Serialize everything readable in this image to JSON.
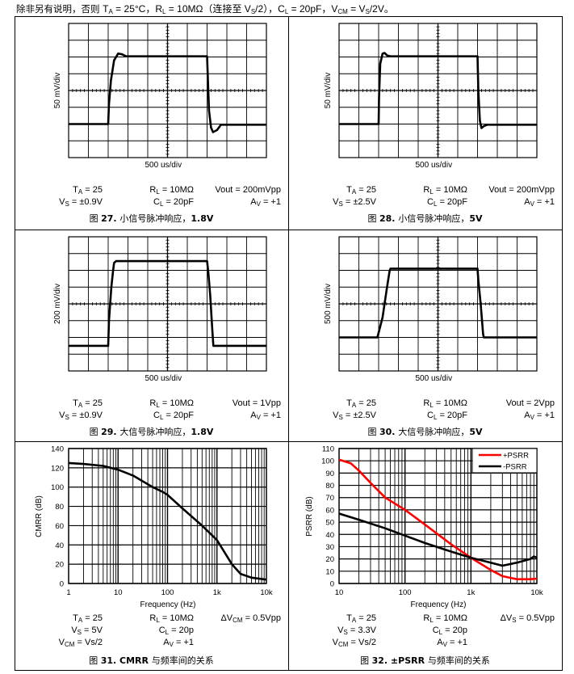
{
  "header": {
    "note_prefix": "除非另有说明，否则 ",
    "conditions": [
      {
        "main": "T",
        "sub": "A",
        "rest": " = 25°C，"
      },
      {
        "main": "R",
        "sub": "L",
        "rest": " = 10MΩ（连接至 "
      },
      {
        "main": "V",
        "sub": "S",
        "rest": "/2），"
      },
      {
        "main": "C",
        "sub": "L",
        "rest": " = 20pF，"
      },
      {
        "main": "V",
        "sub": "CM",
        "rest": " = "
      },
      {
        "main": "V",
        "sub": "S",
        "rest": "/2V。"
      }
    ]
  },
  "colors": {
    "trace": "#000000",
    "psrr_plus": "#ff0000",
    "psrr_minus": "#000000",
    "grid": "#000000"
  },
  "chart_data": [
    {
      "id": "fig27",
      "type": "line",
      "xlabel": "500 us/div",
      "ylabel": "50 mV/div",
      "x_per_div_us": 500,
      "y_per_div_mV": 50,
      "xlim": [
        -2500,
        2500
      ],
      "ylim": [
        -200,
        200
      ],
      "grid": true,
      "series": [
        {
          "x": [
            -2500,
            -1500,
            -1480,
            -1430,
            -1350,
            -1250,
            -1150,
            -1050,
            1000,
            1050,
            1100,
            1150,
            1250,
            1350,
            2500
          ],
          "y": [
            -100,
            -100,
            -40,
            30,
            90,
            110,
            108,
            102,
            102,
            -60,
            -110,
            -124,
            -118,
            -102,
            -102
          ]
        }
      ],
      "params": [
        [
          {
            "main": "T",
            "sub": "A",
            "rest": " = 25"
          },
          {
            "main": "R",
            "sub": "L",
            "rest": " = 10MΩ"
          },
          {
            "main": "Vout = 200mVpp",
            "sub": "",
            "rest": ""
          }
        ],
        [
          {
            "main": "V",
            "sub": "S",
            "rest": " = ±0.9V"
          },
          {
            "main": "C",
            "sub": "L",
            "rest": " = 20pF"
          },
          {
            "main": "A",
            "sub": "V",
            "rest": " = +1"
          }
        ]
      ],
      "caption_prefix": "图 ",
      "caption_num": "27. ",
      "caption_text": "小信号脉冲响应，",
      "caption_suffix": "1.8V"
    },
    {
      "id": "fig28",
      "type": "line",
      "xlabel": "500 us/div",
      "ylabel": "50 mV/div",
      "x_per_div_us": 500,
      "y_per_div_mV": 50,
      "xlim": [
        -2500,
        2500
      ],
      "ylim": [
        -200,
        200
      ],
      "grid": true,
      "series": [
        {
          "x": [
            -2500,
            -1500,
            -1490,
            -1460,
            -1400,
            -1350,
            -1280,
            -1200,
            1000,
            1020,
            1060,
            1100,
            1160,
            1250,
            2500
          ],
          "y": [
            -100,
            -100,
            -20,
            80,
            110,
            112,
            104,
            102,
            102,
            0,
            -90,
            -112,
            -106,
            -102,
            -102
          ]
        }
      ],
      "params": [
        [
          {
            "main": "T",
            "sub": "A",
            "rest": " = 25"
          },
          {
            "main": "R",
            "sub": "L",
            "rest": " = 10MΩ"
          },
          {
            "main": "Vout = 200mVpp",
            "sub": "",
            "rest": ""
          }
        ],
        [
          {
            "main": "V",
            "sub": "S",
            "rest": " = ±2.5V"
          },
          {
            "main": "C",
            "sub": "L",
            "rest": " = 20pF"
          },
          {
            "main": "A",
            "sub": "V",
            "rest": " = +1"
          }
        ]
      ],
      "caption_prefix": "图 ",
      "caption_num": "28. ",
      "caption_text": "小信号脉冲响应，",
      "caption_suffix": "5V"
    },
    {
      "id": "fig29",
      "type": "line",
      "xlabel": "500 us/div",
      "ylabel": "200 mV/div",
      "x_per_div_us": 500,
      "y_per_div_mV": 200,
      "xlim": [
        -2500,
        2500
      ],
      "ylim": [
        -800,
        800
      ],
      "grid": true,
      "series": [
        {
          "x": [
            -2500,
            -1500,
            -1480,
            -1420,
            -1380,
            -1350,
            -1300,
            1000,
            1030,
            1080,
            1130,
            1160,
            2500
          ],
          "y": [
            -500,
            -500,
            -200,
            200,
            380,
            490,
            510,
            510,
            380,
            100,
            -300,
            -500,
            -500
          ]
        }
      ],
      "params": [
        [
          {
            "main": "T",
            "sub": "A",
            "rest": " = 25"
          },
          {
            "main": "R",
            "sub": "L",
            "rest": " = 10MΩ"
          },
          {
            "main": "Vout = 1Vpp",
            "sub": "",
            "rest": ""
          }
        ],
        [
          {
            "main": "V",
            "sub": "S",
            "rest": " = ±0.9V"
          },
          {
            "main": "C",
            "sub": "L",
            "rest": " = 20pF"
          },
          {
            "main": "A",
            "sub": "V",
            "rest": " = +1"
          }
        ]
      ],
      "caption_prefix": "图 ",
      "caption_num": "29. ",
      "caption_text": "大信号脉冲响应，",
      "caption_suffix": "1.8V"
    },
    {
      "id": "fig30",
      "type": "line",
      "xlabel": "500 us/div",
      "ylabel": "500 mV/div",
      "x_per_div_us": 500,
      "y_per_div_mV": 500,
      "xlim": [
        -2500,
        2500
      ],
      "ylim": [
        -2000,
        2000
      ],
      "grid": true,
      "series": [
        {
          "x": [
            -2500,
            -1530,
            -1400,
            -1300,
            -1220,
            -1200,
            1000,
            1020,
            1080,
            1140,
            1160,
            2500
          ],
          "y": [
            -1000,
            -1000,
            -400,
            400,
            1000,
            1050,
            1050,
            700,
            0,
            -900,
            -1000,
            -1000
          ]
        }
      ],
      "params": [
        [
          {
            "main": "T",
            "sub": "A",
            "rest": " = 25"
          },
          {
            "main": "R",
            "sub": "L",
            "rest": " = 10MΩ"
          },
          {
            "main": "Vout = 2Vpp",
            "sub": "",
            "rest": ""
          }
        ],
        [
          {
            "main": "V",
            "sub": "S",
            "rest": " = ±2.5V"
          },
          {
            "main": "C",
            "sub": "L",
            "rest": " = 20pF"
          },
          {
            "main": "A",
            "sub": "V",
            "rest": " = +1"
          }
        ]
      ],
      "caption_prefix": "图 ",
      "caption_num": "30. ",
      "caption_text": "大信号脉冲响应，",
      "caption_suffix": "5V"
    },
    {
      "id": "fig31",
      "type": "line",
      "xlabel": "Frequency (Hz)",
      "ylabel": "CMRR (dB)",
      "xscale": "log",
      "xlim": [
        1,
        10000
      ],
      "ylim": [
        0,
        140
      ],
      "grid": true,
      "xticks": [
        1,
        10,
        100,
        1000,
        10000
      ],
      "xtick_labels": [
        "1",
        "10",
        "100",
        "1k",
        "10k"
      ],
      "yticks": [
        0,
        20,
        40,
        60,
        80,
        100,
        120,
        140
      ],
      "series": [
        {
          "x": [
            1,
            2,
            5,
            10,
            20,
            50,
            80,
            100,
            200,
            500,
            1000,
            2000,
            3000,
            5000,
            10000
          ],
          "y": [
            125,
            124,
            122,
            118,
            112,
            100,
            95,
            92,
            78,
            60,
            45,
            20,
            10,
            6,
            4
          ]
        }
      ],
      "params": [
        [
          {
            "main": "T",
            "sub": "A",
            "rest": " = 25"
          },
          {
            "main": "R",
            "sub": "L",
            "rest": " = 10MΩ"
          },
          {
            "main": "ΔV",
            "sub": "CM",
            "rest": " = 0.5Vpp"
          }
        ],
        [
          {
            "main": "V",
            "sub": "S",
            "rest": " = 5V"
          },
          {
            "main": "C",
            "sub": "L",
            "rest": " = 20p"
          },
          {
            "main": "",
            "sub": "",
            "rest": ""
          }
        ],
        [
          {
            "main": "V",
            "sub": "CM",
            "rest": " = Vs/2"
          },
          {
            "main": "A",
            "sub": "V",
            "rest": " = +1"
          },
          {
            "main": "",
            "sub": "",
            "rest": ""
          }
        ]
      ],
      "caption_prefix": "图 ",
      "caption_num": "31. CMRR ",
      "caption_text": "与频率间的关系",
      "caption_suffix": ""
    },
    {
      "id": "fig32",
      "type": "line",
      "xlabel": "Frequency (Hz)",
      "ylabel": "PSRR (dB)",
      "xscale": "log",
      "xlim": [
        10,
        10000
      ],
      "ylim": [
        0,
        110
      ],
      "grid": true,
      "legend": "top-right",
      "xticks": [
        10,
        100,
        1000,
        10000
      ],
      "xtick_labels": [
        "10",
        "100",
        "1k",
        "10k"
      ],
      "yticks": [
        0,
        10,
        20,
        30,
        40,
        50,
        60,
        70,
        80,
        90,
        100,
        110
      ],
      "series": [
        {
          "name": "+PSRR",
          "color": "#ff0000",
          "x": [
            10,
            15,
            20,
            30,
            50,
            100,
            200,
            500,
            1000,
            2000,
            3000,
            5000,
            8000,
            10000
          ],
          "y": [
            101,
            98,
            92,
            82,
            70,
            60,
            48,
            32,
            21,
            11,
            6,
            3.5,
            3.5,
            4
          ]
        },
        {
          "name": "-PSRR",
          "color": "#000000",
          "x": [
            10,
            20,
            50,
            100,
            200,
            500,
            1000,
            2000,
            3000,
            5000,
            8000,
            9000,
            10000
          ],
          "y": [
            57,
            52,
            45,
            39,
            33,
            26,
            21,
            17,
            14.5,
            17,
            20,
            22,
            21
          ]
        }
      ],
      "params": [
        [
          {
            "main": "T",
            "sub": "A",
            "rest": " = 25"
          },
          {
            "main": "R",
            "sub": "L",
            "rest": " = 10MΩ"
          },
          {
            "main": "ΔV",
            "sub": "S",
            "rest": " = 0.5Vpp"
          }
        ],
        [
          {
            "main": "V",
            "sub": "S",
            "rest": " = 3.3V"
          },
          {
            "main": "C",
            "sub": "L",
            "rest": " = 20p"
          },
          {
            "main": "",
            "sub": "",
            "rest": ""
          }
        ],
        [
          {
            "main": "V",
            "sub": "CM",
            "rest": " = Vs/2"
          },
          {
            "main": "A",
            "sub": "V",
            "rest": " = +1"
          },
          {
            "main": "",
            "sub": "",
            "rest": ""
          }
        ]
      ],
      "caption_prefix": "图 ",
      "caption_num": "32. ±PSRR ",
      "caption_text": "与频率间的关系",
      "caption_suffix": ""
    }
  ]
}
